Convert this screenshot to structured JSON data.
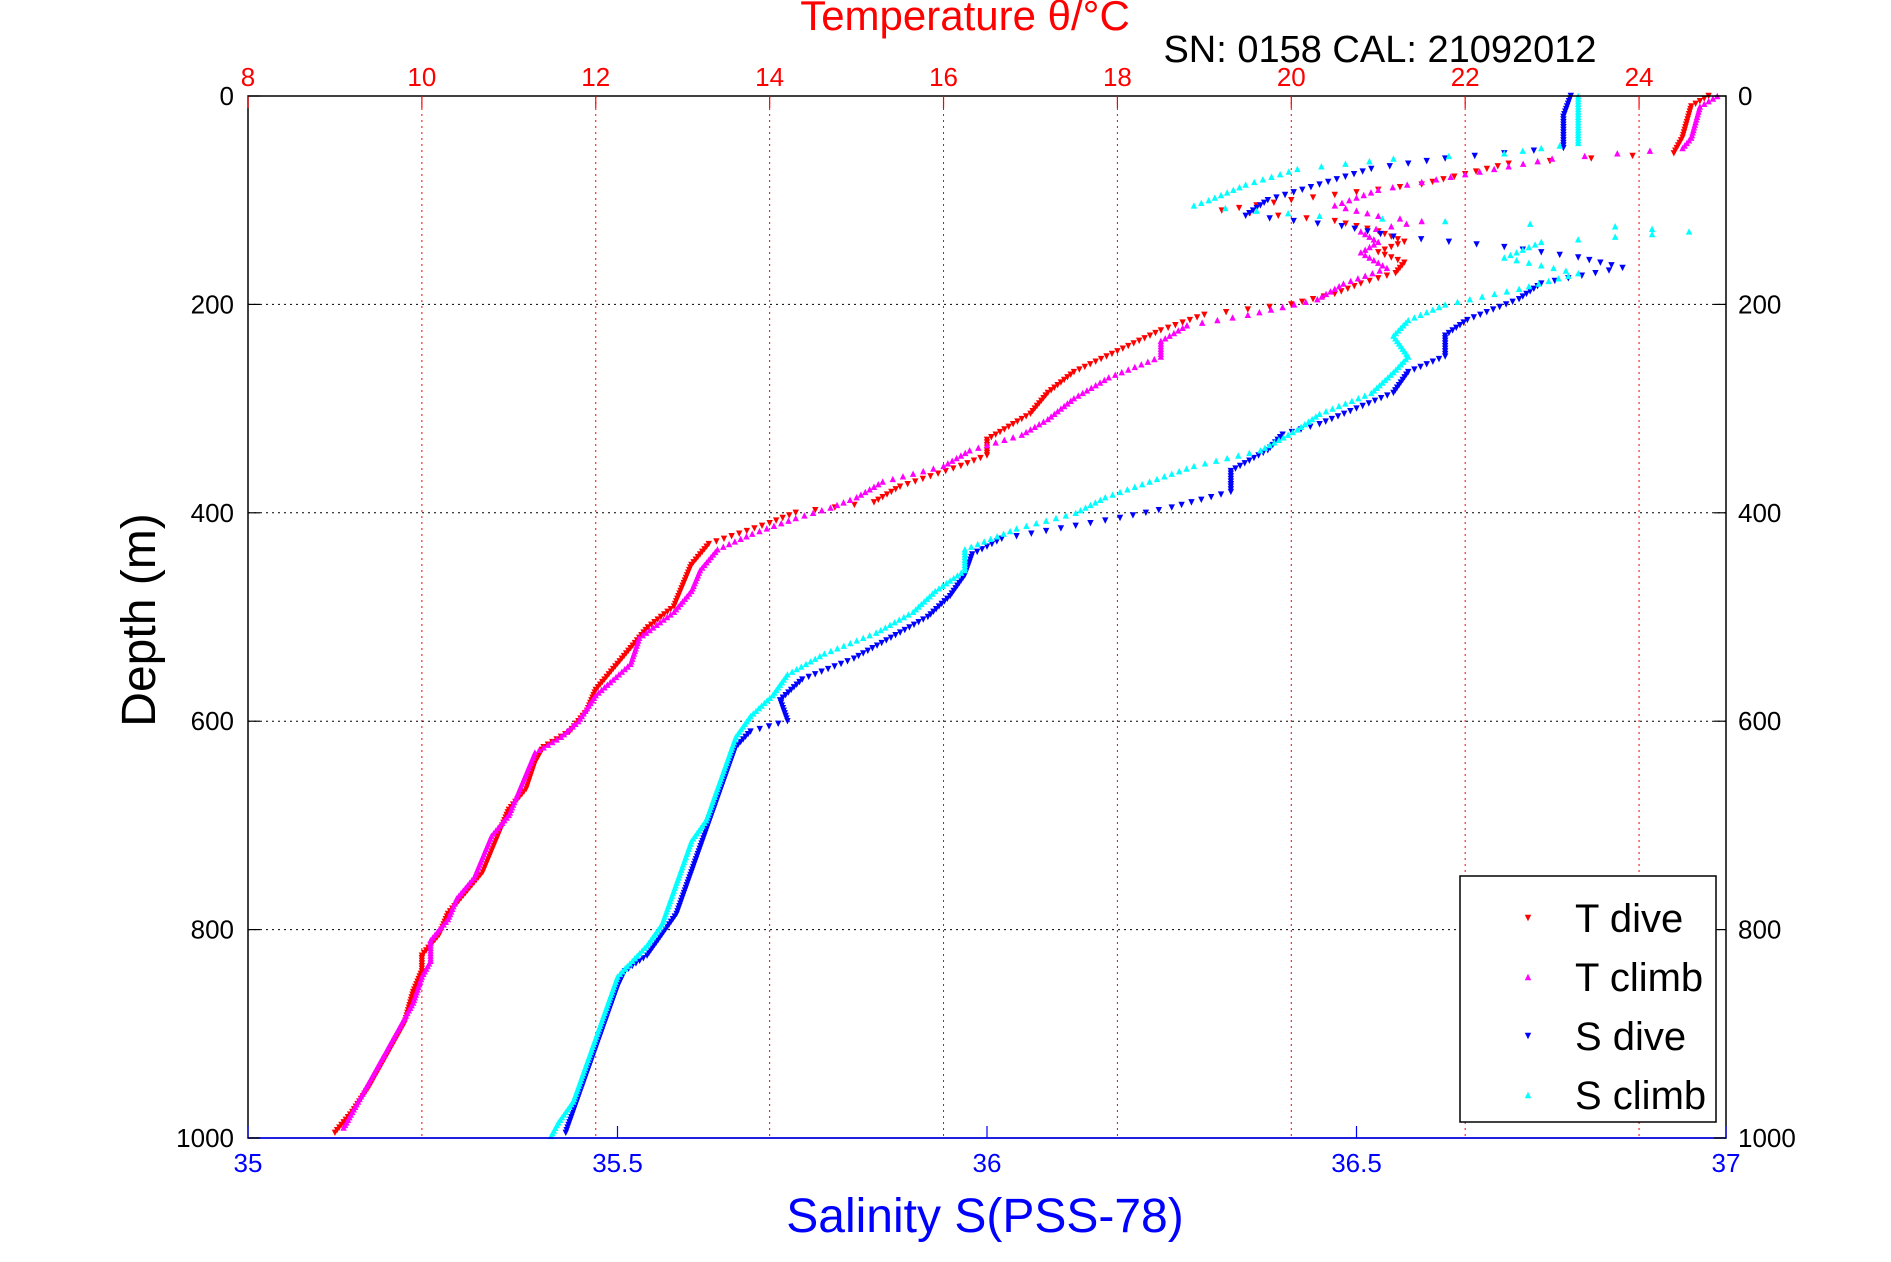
{
  "chart_data": {
    "type": "scatter",
    "title": "Temperature θ/°C",
    "subtitle": "SN: 0158  CAL: 21092012",
    "xlabel": "Salinity S(PSS-78)",
    "ylabel": "Depth (m)",
    "x_top": {
      "label": "Temperature θ/°C",
      "lim": [
        8,
        25
      ],
      "ticks": [
        8,
        10,
        12,
        14,
        16,
        18,
        20,
        22,
        24
      ],
      "color": "#ff0000"
    },
    "x_bottom": {
      "label": "Salinity S(PSS-78)",
      "lim": [
        35,
        37
      ],
      "ticks": [
        35,
        35.5,
        36,
        36.5,
        37
      ],
      "color": "#0000ff"
    },
    "y": {
      "label": "Depth (m)",
      "lim": [
        0,
        1000
      ],
      "reversed": true,
      "ticks": [
        0,
        200,
        400,
        600,
        800,
        1000
      ]
    },
    "grid": true,
    "legend_position": "bottom-right",
    "series": [
      {
        "name": "T dive",
        "axis": "top",
        "color": "#ff0000",
        "marker": "triangle-down",
        "points": [
          [
            24.8,
            0
          ],
          [
            24.6,
            10
          ],
          [
            24.5,
            40
          ],
          [
            24.4,
            55
          ],
          [
            22.5,
            65
          ],
          [
            21.5,
            85
          ],
          [
            20.0,
            100
          ],
          [
            19.2,
            110
          ],
          [
            20.5,
            120
          ],
          [
            21.0,
            130
          ],
          [
            21.3,
            140
          ],
          [
            21.0,
            150
          ],
          [
            21.3,
            160
          ],
          [
            21.2,
            170
          ],
          [
            20.8,
            180
          ],
          [
            20.5,
            190
          ],
          [
            20.0,
            200
          ],
          [
            19.0,
            210
          ],
          [
            18.5,
            225
          ],
          [
            18.0,
            245
          ],
          [
            17.5,
            265
          ],
          [
            17.2,
            285
          ],
          [
            17.0,
            305
          ],
          [
            16.8,
            315
          ],
          [
            16.5,
            330
          ],
          [
            16.5,
            345
          ],
          [
            16.2,
            355
          ],
          [
            15.5,
            375
          ],
          [
            15.2,
            390
          ],
          [
            14.3,
            400
          ],
          [
            14.0,
            410
          ],
          [
            13.3,
            430
          ],
          [
            13.1,
            450
          ],
          [
            13.0,
            470
          ],
          [
            12.9,
            490
          ],
          [
            12.6,
            510
          ],
          [
            12.3,
            540
          ],
          [
            12.0,
            570
          ],
          [
            11.9,
            590
          ],
          [
            11.7,
            610
          ],
          [
            11.4,
            625
          ],
          [
            11.3,
            640
          ],
          [
            11.2,
            665
          ],
          [
            11.0,
            685
          ],
          [
            10.9,
            705
          ],
          [
            10.8,
            725
          ],
          [
            10.7,
            745
          ],
          [
            10.5,
            765
          ],
          [
            10.3,
            785
          ],
          [
            10.2,
            805
          ],
          [
            10.0,
            825
          ],
          [
            10.0,
            840
          ],
          [
            9.9,
            860
          ],
          [
            9.8,
            890
          ],
          [
            9.6,
            920
          ],
          [
            9.4,
            950
          ],
          [
            9.2,
            975
          ],
          [
            9.0,
            995
          ]
        ]
      },
      {
        "name": "T climb",
        "axis": "top",
        "color": "#ff00ff",
        "marker": "triangle-up",
        "points": [
          [
            24.9,
            0
          ],
          [
            24.7,
            10
          ],
          [
            24.6,
            40
          ],
          [
            24.5,
            50
          ],
          [
            23.0,
            60
          ],
          [
            22.0,
            75
          ],
          [
            21.0,
            90
          ],
          [
            20.5,
            105
          ],
          [
            21.0,
            115
          ],
          [
            21.5,
            120
          ],
          [
            20.8,
            130
          ],
          [
            21.0,
            140
          ],
          [
            20.8,
            150
          ],
          [
            21.1,
            165
          ],
          [
            20.6,
            180
          ],
          [
            20.3,
            195
          ],
          [
            19.5,
            210
          ],
          [
            18.8,
            220
          ],
          [
            18.5,
            235
          ],
          [
            18.5,
            250
          ],
          [
            17.9,
            270
          ],
          [
            17.5,
            290
          ],
          [
            17.2,
            310
          ],
          [
            16.9,
            325
          ],
          [
            16.3,
            340
          ],
          [
            16.0,
            355
          ],
          [
            15.3,
            370
          ],
          [
            15.0,
            385
          ],
          [
            14.7,
            395
          ],
          [
            14.3,
            405
          ],
          [
            13.8,
            420
          ],
          [
            13.4,
            435
          ],
          [
            13.2,
            455
          ],
          [
            13.1,
            475
          ],
          [
            12.9,
            495
          ],
          [
            12.5,
            520
          ],
          [
            12.4,
            545
          ],
          [
            12.0,
            575
          ],
          [
            11.8,
            600
          ],
          [
            11.6,
            615
          ],
          [
            11.3,
            630
          ],
          [
            11.2,
            650
          ],
          [
            11.1,
            670
          ],
          [
            11.0,
            690
          ],
          [
            10.8,
            710
          ],
          [
            10.7,
            730
          ],
          [
            10.6,
            750
          ],
          [
            10.4,
            770
          ],
          [
            10.3,
            790
          ],
          [
            10.1,
            810
          ],
          [
            10.1,
            830
          ],
          [
            10.0,
            845
          ],
          [
            9.9,
            870
          ],
          [
            9.7,
            900
          ],
          [
            9.5,
            930
          ],
          [
            9.3,
            960
          ],
          [
            9.1,
            990
          ]
        ]
      },
      {
        "name": "S dive",
        "axis": "bottom",
        "color": "#0000ff",
        "marker": "triangle-down",
        "points": [
          [
            36.79,
            0
          ],
          [
            36.78,
            20
          ],
          [
            36.78,
            50
          ],
          [
            36.62,
            60
          ],
          [
            36.52,
            70
          ],
          [
            36.45,
            85
          ],
          [
            36.38,
            100
          ],
          [
            36.35,
            115
          ],
          [
            36.48,
            125
          ],
          [
            36.55,
            135
          ],
          [
            36.7,
            145
          ],
          [
            36.8,
            155
          ],
          [
            36.86,
            165
          ],
          [
            36.75,
            180
          ],
          [
            36.72,
            195
          ],
          [
            36.65,
            215
          ],
          [
            36.62,
            230
          ],
          [
            36.62,
            250
          ],
          [
            36.57,
            265
          ],
          [
            36.55,
            285
          ],
          [
            36.5,
            300
          ],
          [
            36.45,
            315
          ],
          [
            36.4,
            325
          ],
          [
            36.38,
            340
          ],
          [
            36.33,
            360
          ],
          [
            36.33,
            380
          ],
          [
            36.25,
            395
          ],
          [
            36.18,
            405
          ],
          [
            36.02,
            425
          ],
          [
            35.98,
            440
          ],
          [
            35.97,
            460
          ],
          [
            35.95,
            480
          ],
          [
            35.92,
            500
          ],
          [
            35.87,
            520
          ],
          [
            35.82,
            540
          ],
          [
            35.75,
            560
          ],
          [
            35.72,
            580
          ],
          [
            35.73,
            600
          ],
          [
            35.68,
            610
          ],
          [
            35.66,
            625
          ],
          [
            35.65,
            645
          ],
          [
            35.64,
            665
          ],
          [
            35.63,
            685
          ],
          [
            35.62,
            705
          ],
          [
            35.61,
            725
          ],
          [
            35.6,
            745
          ],
          [
            35.59,
            765
          ],
          [
            35.58,
            785
          ],
          [
            35.56,
            805
          ],
          [
            35.54,
            825
          ],
          [
            35.51,
            840
          ],
          [
            35.5,
            855
          ],
          [
            35.49,
            875
          ],
          [
            35.48,
            895
          ],
          [
            35.47,
            915
          ],
          [
            35.46,
            935
          ],
          [
            35.45,
            955
          ],
          [
            35.44,
            975
          ],
          [
            35.43,
            995
          ]
        ]
      },
      {
        "name": "S climb",
        "axis": "bottom",
        "color": "#00ffff",
        "marker": "triangle-up",
        "points": [
          [
            36.8,
            0
          ],
          [
            36.8,
            20
          ],
          [
            36.8,
            45
          ],
          [
            36.7,
            55
          ],
          [
            36.55,
            60
          ],
          [
            36.42,
            70
          ],
          [
            36.35,
            85
          ],
          [
            36.3,
            100
          ],
          [
            36.28,
            105
          ],
          [
            36.45,
            115
          ],
          [
            36.62,
            120
          ],
          [
            36.85,
            125
          ],
          [
            36.95,
            130
          ],
          [
            36.75,
            140
          ],
          [
            36.7,
            155
          ],
          [
            36.8,
            170
          ],
          [
            36.72,
            185
          ],
          [
            36.62,
            200
          ],
          [
            36.57,
            215
          ],
          [
            36.55,
            230
          ],
          [
            36.57,
            250
          ],
          [
            36.55,
            265
          ],
          [
            36.52,
            285
          ],
          [
            36.45,
            305
          ],
          [
            36.42,
            320
          ],
          [
            36.37,
            340
          ],
          [
            36.28,
            355
          ],
          [
            36.22,
            370
          ],
          [
            36.16,
            385
          ],
          [
            36.12,
            400
          ],
          [
            36.04,
            415
          ],
          [
            35.97,
            435
          ],
          [
            35.97,
            455
          ],
          [
            35.93,
            475
          ],
          [
            35.9,
            495
          ],
          [
            35.85,
            515
          ],
          [
            35.78,
            535
          ],
          [
            35.73,
            555
          ],
          [
            35.71,
            575
          ],
          [
            35.68,
            595
          ],
          [
            35.66,
            615
          ],
          [
            35.65,
            635
          ],
          [
            35.64,
            655
          ],
          [
            35.63,
            675
          ],
          [
            35.62,
            695
          ],
          [
            35.6,
            715
          ],
          [
            35.59,
            735
          ],
          [
            35.58,
            755
          ],
          [
            35.57,
            775
          ],
          [
            35.56,
            795
          ],
          [
            35.54,
            815
          ],
          [
            35.52,
            830
          ],
          [
            35.5,
            845
          ],
          [
            35.49,
            865
          ],
          [
            35.48,
            885
          ],
          [
            35.47,
            905
          ],
          [
            35.46,
            925
          ],
          [
            35.45,
            945
          ],
          [
            35.44,
            965
          ],
          [
            35.42,
            985
          ],
          [
            35.41,
            998
          ]
        ]
      }
    ]
  }
}
